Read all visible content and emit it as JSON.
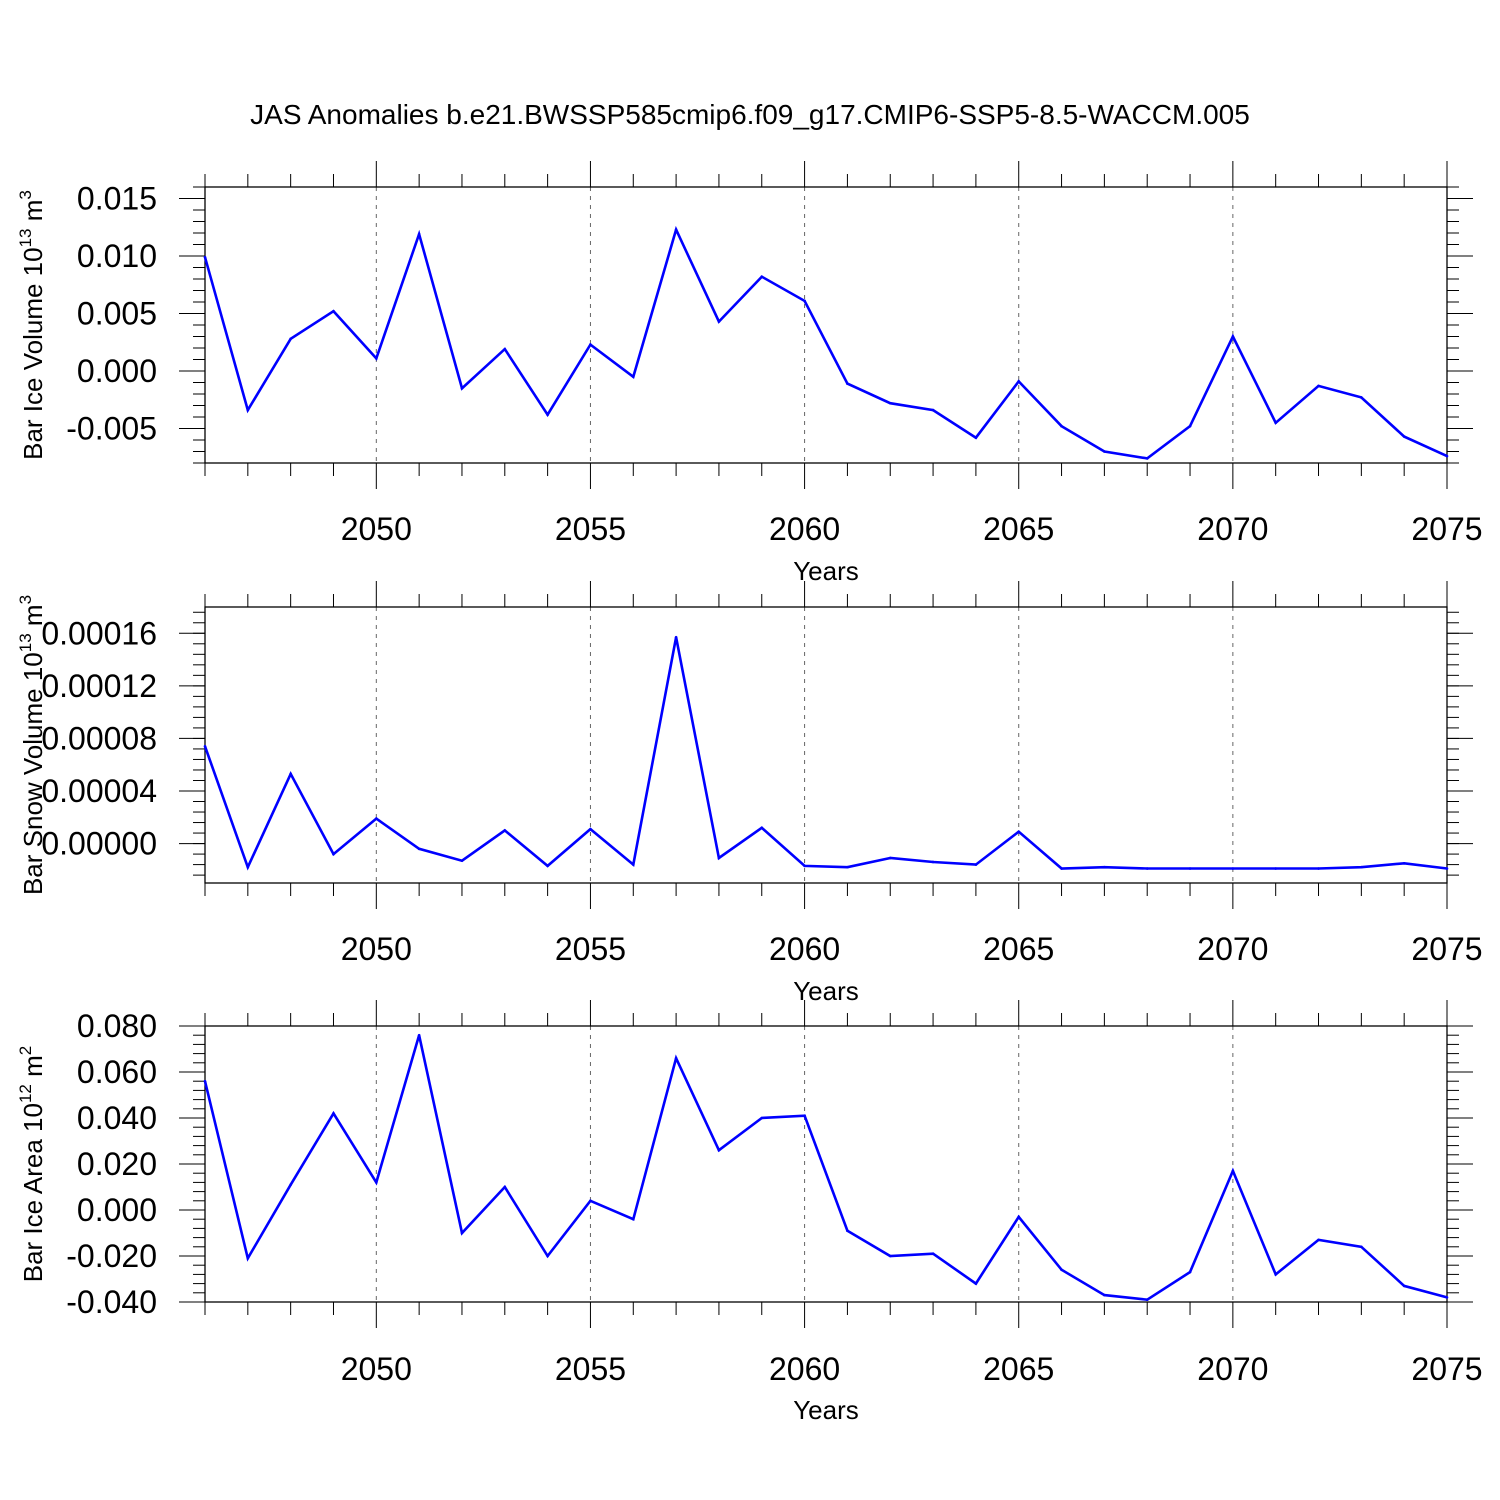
{
  "title": "JAS Anomalies b.e21.BWSSP585cmip6.f09_g17.CMIP6-SSP5-8.5-WACCM.005",
  "colors": {
    "line": "#0000ff",
    "axis": "#000000",
    "grid": "#666666"
  },
  "chart_data": [
    {
      "type": "line",
      "xlabel": "Years",
      "ylabel": "Bar Ice Volume 10",
      "ylabel_exp": "13",
      "ylabel_unit": " m",
      "ylabel_unit_exp": "3",
      "xlim": [
        2046,
        2075
      ],
      "ylim": [
        -0.008,
        0.016
      ],
      "xticks": [
        "2050",
        "2055",
        "2060",
        "2065",
        "2070",
        "2075"
      ],
      "yticks": [
        "0.015",
        "0.010",
        "0.005",
        "0.000",
        "-0.005"
      ],
      "ytick_values": [
        0.015,
        0.01,
        0.005,
        0.0,
        -0.005
      ],
      "x": [
        2046,
        2047,
        2048,
        2049,
        2050,
        2051,
        2052,
        2053,
        2054,
        2055,
        2056,
        2057,
        2058,
        2059,
        2060,
        2061,
        2062,
        2063,
        2064,
        2065,
        2066,
        2067,
        2068,
        2069,
        2070,
        2071,
        2072,
        2073,
        2074,
        2075
      ],
      "series": [
        {
          "values": [
            0.0099,
            -0.0034,
            0.0028,
            0.0052,
            0.0011,
            0.0119,
            -0.0015,
            0.0019,
            -0.0038,
            0.0023,
            -0.0005,
            0.0123,
            0.0043,
            0.0082,
            0.0061,
            -0.0011,
            -0.0028,
            -0.0034,
            -0.0058,
            -0.0009,
            -0.0048,
            -0.007,
            -0.0076,
            -0.0048,
            0.003,
            -0.0045,
            -0.0013,
            -0.0023,
            -0.0057,
            -0.0074
          ]
        }
      ],
      "grid": "dashed vertical at labeled years"
    },
    {
      "type": "line",
      "xlabel": "Years",
      "ylabel": "Bar Snow Volume 10",
      "ylabel_exp": "13",
      "ylabel_unit": " m",
      "ylabel_unit_exp": "3",
      "xlim": [
        2046,
        2075
      ],
      "ylim": [
        -3e-05,
        0.00018
      ],
      "xticks": [
        "2050",
        "2055",
        "2060",
        "2065",
        "2070",
        "2075"
      ],
      "yticks": [
        "0.00016",
        "0.00012",
        "0.00008",
        "0.00004",
        "0.00000"
      ],
      "ytick_values": [
        0.00016,
        0.00012,
        8e-05,
        4e-05,
        0.0
      ],
      "x": [
        2046,
        2047,
        2048,
        2049,
        2050,
        2051,
        2052,
        2053,
        2054,
        2055,
        2056,
        2057,
        2058,
        2059,
        2060,
        2061,
        2062,
        2063,
        2064,
        2065,
        2066,
        2067,
        2068,
        2069,
        2070,
        2071,
        2072,
        2073,
        2074,
        2075
      ],
      "series": [
        {
          "values": [
            7.4e-05,
            -1.8e-05,
            5.3e-05,
            -8e-06,
            1.9e-05,
            -4e-06,
            -1.3e-05,
            1e-05,
            -1.7e-05,
            1.1e-05,
            -1.6e-05,
            0.000157,
            -1.1e-05,
            1.2e-05,
            -1.7e-05,
            -1.8e-05,
            -1.1e-05,
            -1.4e-05,
            -1.6e-05,
            9e-06,
            -1.9e-05,
            -1.8e-05,
            -1.9e-05,
            -1.9e-05,
            -1.9e-05,
            -1.9e-05,
            -1.9e-05,
            -1.8e-05,
            -1.5e-05,
            -1.9e-05
          ]
        }
      ],
      "grid": "dashed vertical at labeled years"
    },
    {
      "type": "line",
      "xlabel": "Years",
      "ylabel": "Bar Ice Area 10",
      "ylabel_exp": "12",
      "ylabel_unit": " m",
      "ylabel_unit_exp": "2",
      "xlim": [
        2046,
        2075
      ],
      "ylim": [
        -0.04,
        0.08
      ],
      "xticks": [
        "2050",
        "2055",
        "2060",
        "2065",
        "2070",
        "2075"
      ],
      "yticks": [
        "0.080",
        "0.060",
        "0.040",
        "0.020",
        "0.000",
        "-0.020",
        "-0.040"
      ],
      "ytick_values": [
        0.08,
        0.06,
        0.04,
        0.02,
        0.0,
        -0.02,
        -0.04
      ],
      "x": [
        2046,
        2047,
        2048,
        2049,
        2050,
        2051,
        2052,
        2053,
        2054,
        2055,
        2056,
        2057,
        2058,
        2059,
        2060,
        2061,
        2062,
        2063,
        2064,
        2065,
        2066,
        2067,
        2068,
        2069,
        2070,
        2071,
        2072,
        2073,
        2074,
        2075
      ],
      "series": [
        {
          "values": [
            0.056,
            -0.021,
            0.011,
            0.042,
            0.012,
            0.076,
            -0.01,
            0.01,
            -0.02,
            0.004,
            -0.004,
            0.066,
            0.026,
            0.04,
            0.041,
            -0.009,
            -0.02,
            -0.019,
            -0.032,
            -0.003,
            -0.026,
            -0.037,
            -0.039,
            -0.027,
            0.017,
            -0.028,
            -0.013,
            -0.016,
            -0.033,
            -0.038
          ]
        }
      ],
      "grid": "dashed vertical at labeled years"
    }
  ]
}
